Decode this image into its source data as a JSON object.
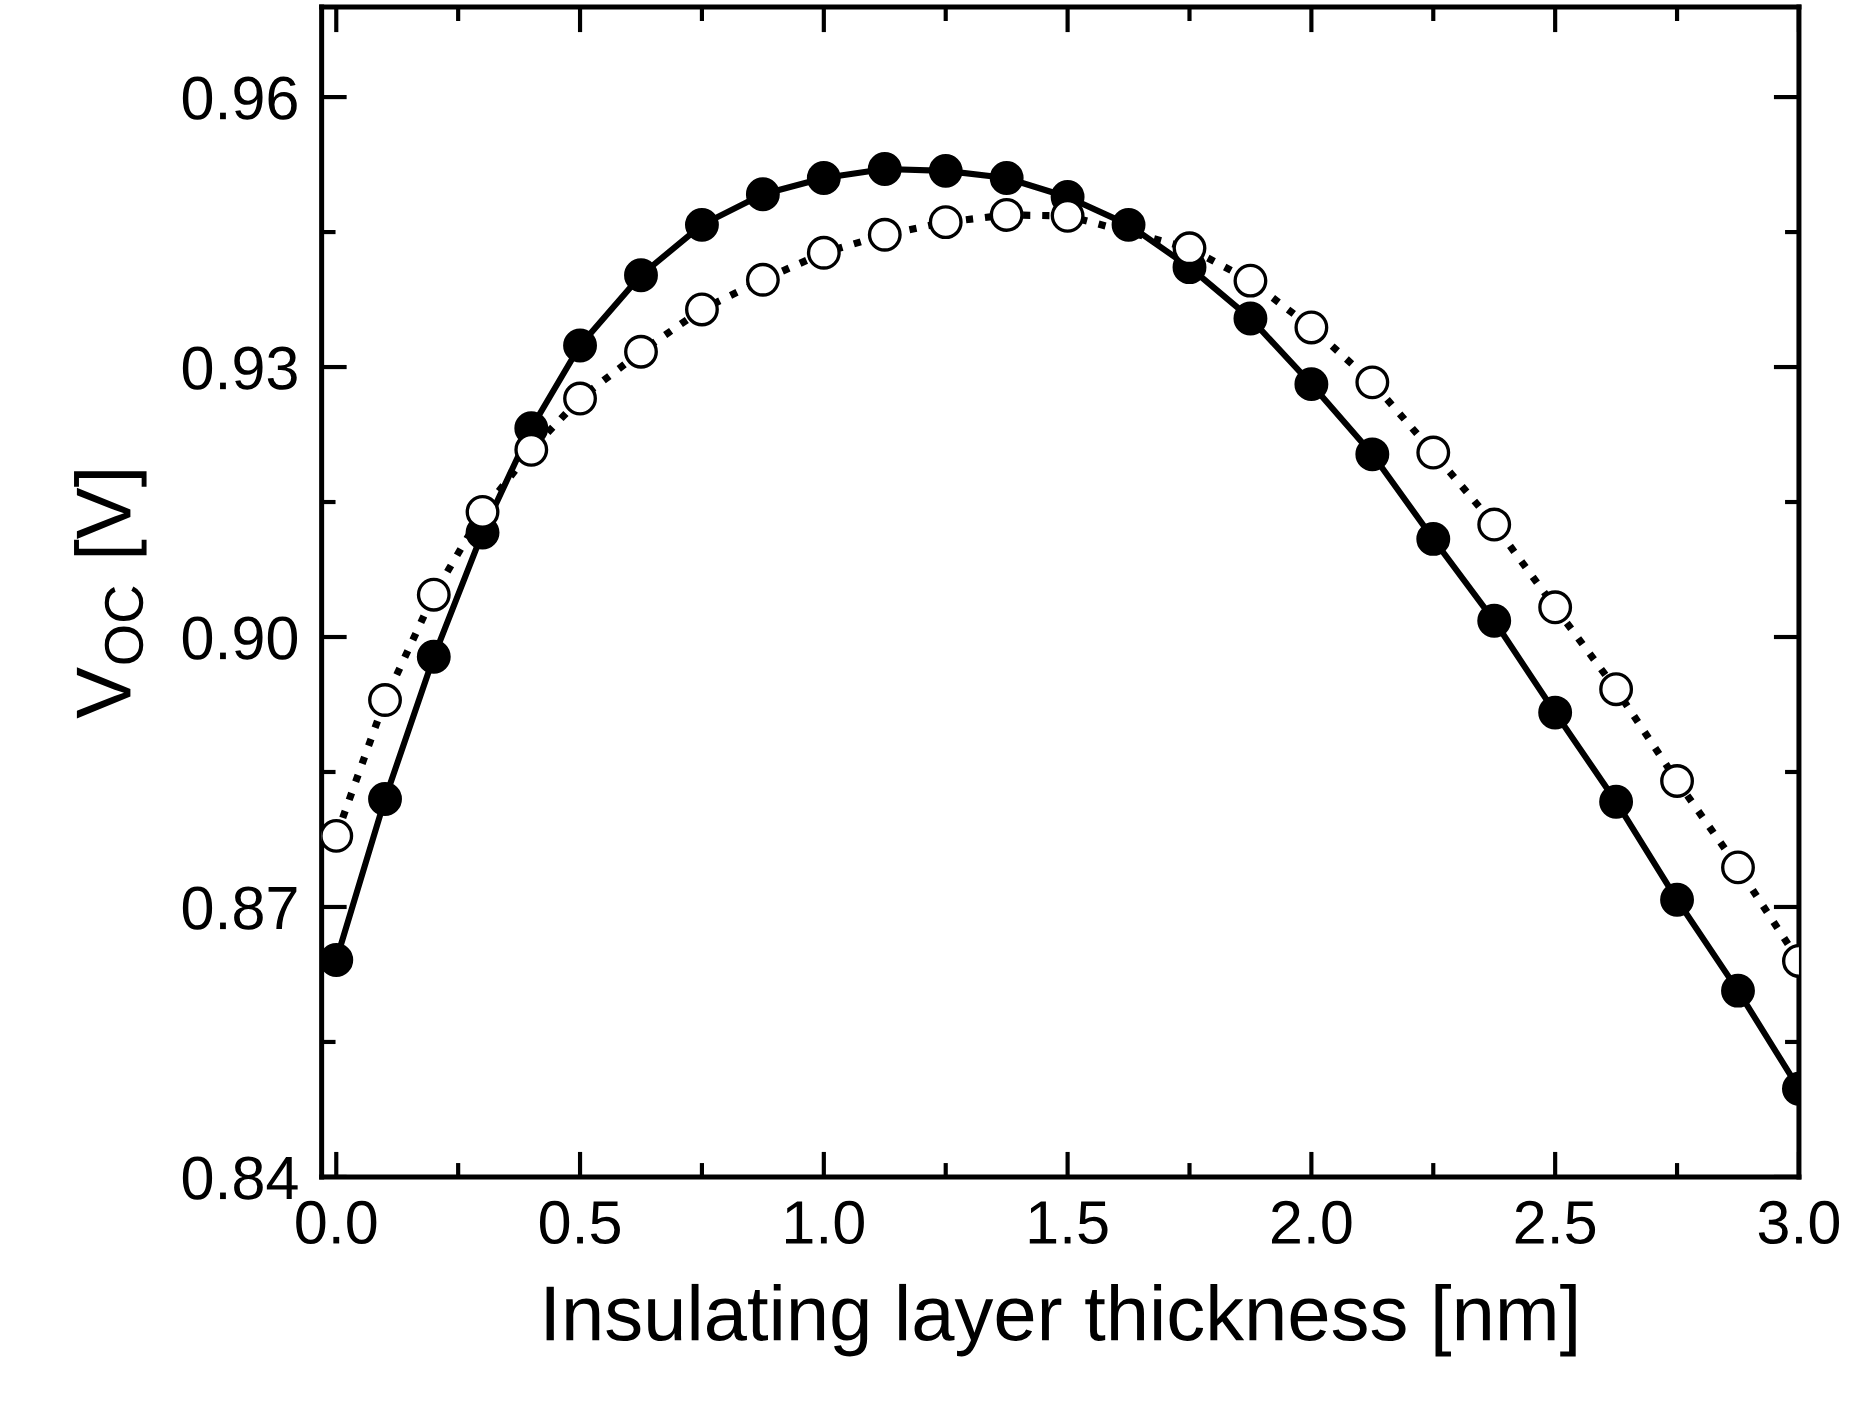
{
  "chart_data": {
    "type": "line",
    "xlabel": "Insulating layer thickness [nm]",
    "ylabel": "V$_{OC}$ [V]",
    "xlim": [
      -0.03,
      3.0
    ],
    "ylim": [
      0.84,
      0.97
    ],
    "xticks": [
      {
        "value": 0.0,
        "label": "0.0"
      },
      {
        "value": 0.25,
        "label": null
      },
      {
        "value": 0.5,
        "label": "0.5"
      },
      {
        "value": 0.75,
        "label": null
      },
      {
        "value": 1.0,
        "label": "1.0"
      },
      {
        "value": 1.25,
        "label": null
      },
      {
        "value": 1.5,
        "label": "1.5"
      },
      {
        "value": 1.75,
        "label": null
      },
      {
        "value": 2.0,
        "label": "2.0"
      },
      {
        "value": 2.25,
        "label": null
      },
      {
        "value": 2.5,
        "label": "2.5"
      },
      {
        "value": 2.75,
        "label": null
      },
      {
        "value": 3.0,
        "label": "3.0"
      }
    ],
    "yticks": [
      0.84,
      {
        "value": 0.855,
        "label": null
      },
      0.87,
      {
        "value": 0.885,
        "label": null
      },
      {
        "value": 0.9,
        "label": "0.90"
      },
      {
        "value": 0.915,
        "label": null
      },
      0.93,
      {
        "value": 0.945,
        "label": null
      },
      0.96
    ],
    "x": [
      0,
      0.1,
      0.2,
      0.3,
      0.4,
      0.5,
      0.625,
      0.75,
      0.875,
      1.0,
      1.125,
      1.25,
      1.375,
      1.5,
      1.625,
      1.75,
      1.875,
      2.0,
      2.125,
      2.25,
      2.375,
      2.5,
      2.625,
      2.75,
      2.875,
      3.0
    ],
    "marker": "circle",
    "grid": false,
    "legend": false,
    "series": [
      {
        "color": "#000000",
        "line_style": "solid",
        "values": [
          0.8641,
          0.882,
          0.8978,
          0.9116,
          0.9232,
          0.9324,
          0.9402,
          0.9458,
          0.9492,
          0.951,
          0.952,
          0.9518,
          0.951,
          0.9489,
          0.9458,
          0.9411,
          0.9354,
          0.9281,
          0.9203,
          0.9109,
          0.9018,
          0.8916,
          0.8817,
          0.8708,
          0.8607,
          0.8498
        ]
      },
      {
        "color": "#000000",
        "line_style": "dotted",
        "values": [
          0.8779,
          0.893,
          0.9047,
          0.9139,
          0.9208,
          0.9265,
          0.9317,
          0.9364,
          0.9397,
          0.9427,
          0.9447,
          0.9461,
          0.9469,
          0.9468,
          null,
          0.9432,
          0.9396,
          0.9344,
          0.9283,
          0.9205,
          0.9125,
          0.9033,
          0.8942,
          0.884,
          0.8744,
          0.864
        ]
      }
    ]
  }
}
